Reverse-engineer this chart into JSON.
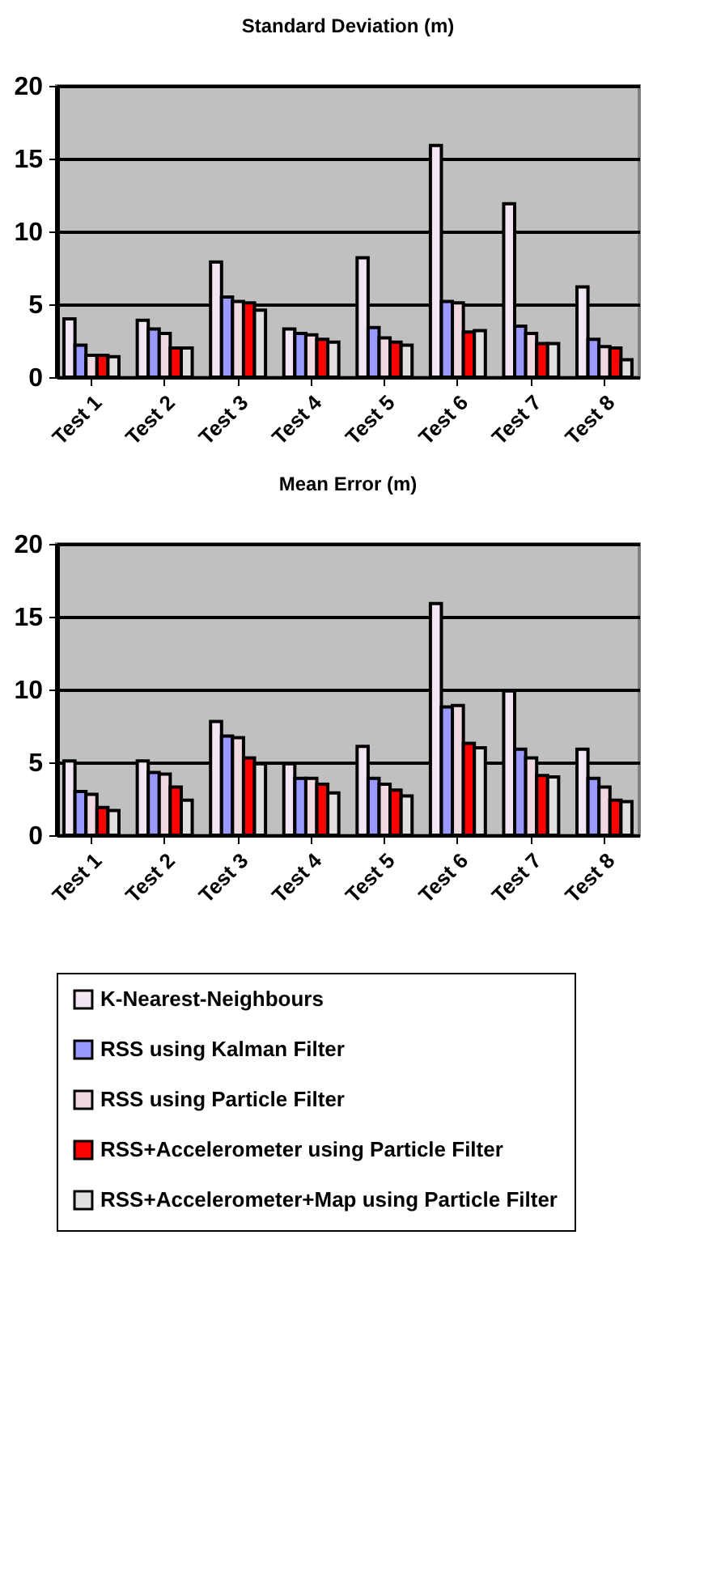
{
  "chart_data": [
    {
      "type": "bar",
      "title": "Standard Deviation (m)",
      "categories": [
        "Test 1",
        "Test 2",
        "Test 3",
        "Test 4",
        "Test 5",
        "Test 6",
        "Test 7",
        "Test 8"
      ],
      "ylim": [
        0,
        20
      ],
      "yticks": [
        0,
        5,
        10,
        15,
        20
      ],
      "grid": "y",
      "series": [
        {
          "color": "#f2e6f2",
          "values": [
            4.0,
            3.9,
            7.9,
            3.3,
            8.2,
            15.9,
            11.9,
            6.2
          ]
        },
        {
          "color": "#9999ff",
          "values": [
            2.2,
            3.3,
            5.5,
            3.0,
            3.4,
            5.2,
            3.5,
            2.6
          ]
        },
        {
          "color": "#f0d8e0",
          "values": [
            1.5,
            3.0,
            5.2,
            2.9,
            2.7,
            5.1,
            3.0,
            2.1
          ]
        },
        {
          "color": "#ff0000",
          "values": [
            1.5,
            2.0,
            5.1,
            2.6,
            2.4,
            3.1,
            2.3,
            2.0
          ]
        },
        {
          "color": "#e0e0e0",
          "values": [
            1.4,
            2.0,
            4.6,
            2.4,
            2.2,
            3.2,
            2.3,
            1.2
          ]
        }
      ]
    },
    {
      "type": "bar",
      "title": "Mean Error (m)",
      "categories": [
        "Test 1",
        "Test 2",
        "Test 3",
        "Test 4",
        "Test 5",
        "Test 6",
        "Test 7",
        "Test 8"
      ],
      "ylim": [
        0,
        20
      ],
      "yticks": [
        0,
        5,
        10,
        15,
        20
      ],
      "grid": "y",
      "legend": "bottom",
      "series": [
        {
          "name": "K-Nearest-Neighbours",
          "color": "#f2e6f2",
          "values": [
            5.1,
            5.1,
            7.8,
            4.9,
            6.1,
            15.9,
            9.9,
            5.9
          ]
        },
        {
          "name": "RSS using Kalman Filter",
          "color": "#9999ff",
          "values": [
            3.0,
            4.3,
            6.8,
            3.9,
            3.9,
            8.8,
            5.9,
            3.9
          ]
        },
        {
          "name": "RSS using Particle Filter",
          "color": "#f0d8e0",
          "values": [
            2.8,
            4.2,
            6.7,
            3.9,
            3.5,
            8.9,
            5.3,
            3.3
          ]
        },
        {
          "name": "RSS+Accelerometer using Particle Filter",
          "color": "#ff0000",
          "values": [
            1.9,
            3.3,
            5.3,
            3.5,
            3.1,
            6.3,
            4.1,
            2.4
          ]
        },
        {
          "name": "RSS+Accelerometer+Map using Particle Filter",
          "color": "#e0e0e0",
          "values": [
            1.7,
            2.4,
            4.9,
            2.9,
            2.7,
            6.0,
            4.0,
            2.3
          ]
        }
      ]
    }
  ]
}
